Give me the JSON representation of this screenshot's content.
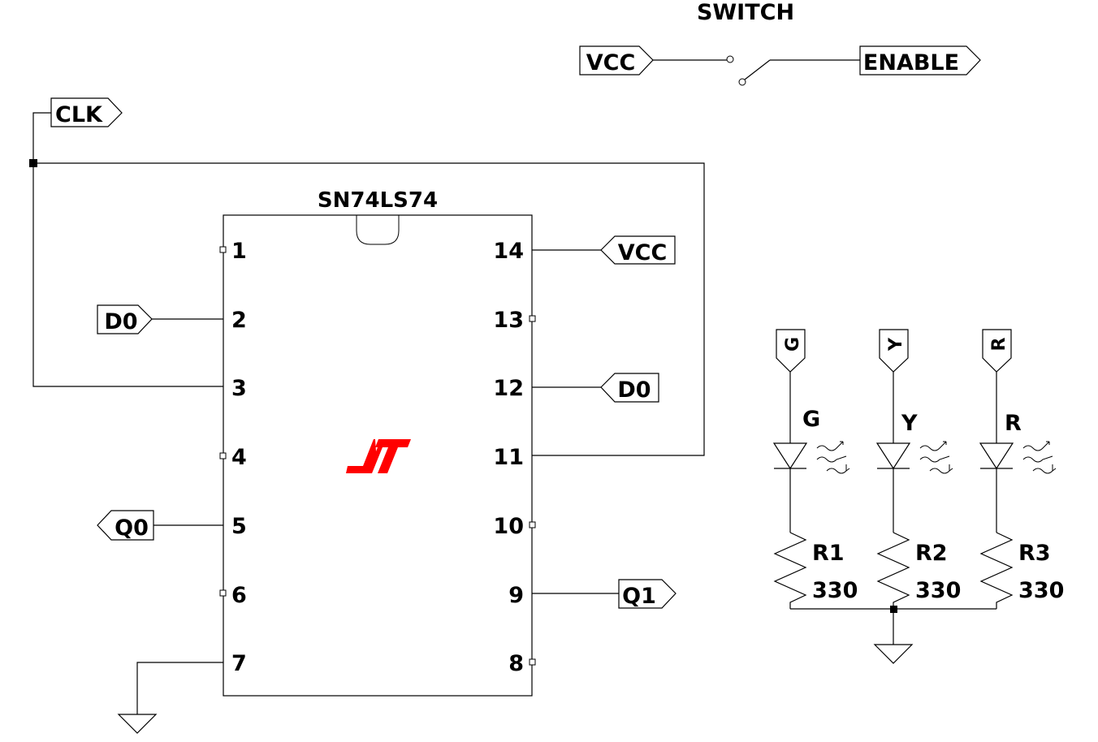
{
  "switch": {
    "title": "SWITCH",
    "in_label": "VCC",
    "out_label": "ENABLE"
  },
  "clock": {
    "label": "CLK"
  },
  "ic": {
    "name": "SN74LS74",
    "left_pins": [
      "1",
      "2",
      "3",
      "4",
      "5",
      "6",
      "7"
    ],
    "right_pins": [
      "14",
      "13",
      "12",
      "11",
      "10",
      "9",
      "8"
    ]
  },
  "net_labels": {
    "pin2": "D0",
    "pin5": "Q0",
    "pin14": "VCC",
    "pin12": "D0",
    "pin9": "Q1"
  },
  "leds": [
    {
      "port": "G",
      "name": "G",
      "resistor": "R1",
      "value": "330"
    },
    {
      "port": "Y",
      "name": "Y",
      "resistor": "R2",
      "value": "330"
    },
    {
      "port": "R",
      "name": "R",
      "resistor": "R3",
      "value": "330"
    }
  ],
  "colors": {
    "wire": "#000000",
    "logo": "#ff0000",
    "background": "#ffffff"
  }
}
